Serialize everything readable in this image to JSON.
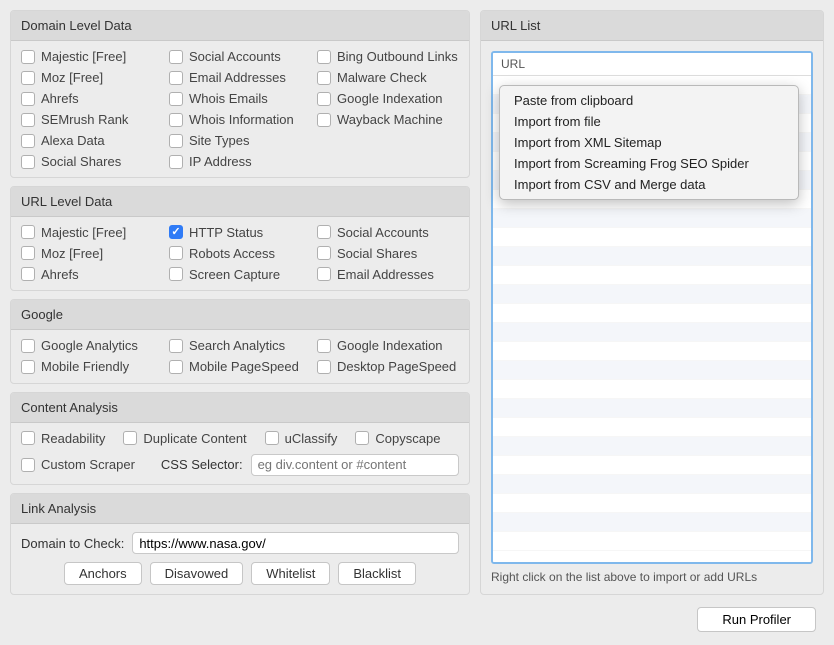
{
  "domainLevel": {
    "title": "Domain Level Data",
    "items": [
      {
        "label": "Majestic [Free]",
        "checked": false
      },
      {
        "label": "Social Accounts",
        "checked": false
      },
      {
        "label": "Bing Outbound Links",
        "checked": false
      },
      {
        "label": "Moz [Free]",
        "checked": false
      },
      {
        "label": "Email Addresses",
        "checked": false
      },
      {
        "label": "Malware Check",
        "checked": false
      },
      {
        "label": "Ahrefs",
        "checked": false
      },
      {
        "label": "Whois Emails",
        "checked": false
      },
      {
        "label": "Google Indexation",
        "checked": false
      },
      {
        "label": "SEMrush Rank",
        "checked": false
      },
      {
        "label": "Whois Information",
        "checked": false
      },
      {
        "label": "Wayback Machine",
        "checked": false
      },
      {
        "label": "Alexa Data",
        "checked": false
      },
      {
        "label": "Site Types",
        "checked": false
      },
      {
        "label": "",
        "checked": false,
        "empty": true
      },
      {
        "label": "Social Shares",
        "checked": false
      },
      {
        "label": "IP Address",
        "checked": false
      }
    ]
  },
  "urlLevel": {
    "title": "URL Level Data",
    "items": [
      {
        "label": "Majestic [Free]",
        "checked": false
      },
      {
        "label": "HTTP Status",
        "checked": true
      },
      {
        "label": "Social Accounts",
        "checked": false
      },
      {
        "label": "Moz [Free]",
        "checked": false
      },
      {
        "label": "Robots Access",
        "checked": false
      },
      {
        "label": "Social Shares",
        "checked": false
      },
      {
        "label": "Ahrefs",
        "checked": false
      },
      {
        "label": "Screen Capture",
        "checked": false
      },
      {
        "label": "Email Addresses",
        "checked": false
      }
    ]
  },
  "google": {
    "title": "Google",
    "items": [
      {
        "label": "Google Analytics",
        "checked": false
      },
      {
        "label": "Search Analytics",
        "checked": false
      },
      {
        "label": "Google Indexation",
        "checked": false
      },
      {
        "label": "Mobile Friendly",
        "checked": false
      },
      {
        "label": "Mobile PageSpeed",
        "checked": false
      },
      {
        "label": "Desktop PageSpeed",
        "checked": false
      }
    ]
  },
  "content": {
    "title": "Content Analysis",
    "row1": [
      {
        "label": "Readability",
        "checked": false
      },
      {
        "label": "Duplicate Content",
        "checked": false
      },
      {
        "label": "uClassify",
        "checked": false
      },
      {
        "label": "Copyscape",
        "checked": false
      }
    ],
    "row2": {
      "label": "Custom Scraper",
      "checked": false
    },
    "cssSelectorLabel": "CSS Selector:",
    "cssSelectorPlaceholder": "eg div.content or #content"
  },
  "link": {
    "title": "Link Analysis",
    "domainLabel": "Domain to Check:",
    "domainValue": "https://www.nasa.gov/",
    "buttons": [
      "Anchors",
      "Disavowed",
      "Whitelist",
      "Blacklist"
    ]
  },
  "urlList": {
    "title": "URL List",
    "columnHeader": "URL",
    "hint": "Right click on the list above to import or add URLs",
    "contextMenu": [
      "Paste from clipboard",
      "Import from file",
      "Import from XML Sitemap",
      "Import from Screaming Frog SEO Spider",
      "Import from CSV and Merge data"
    ]
  },
  "runButton": "Run Profiler"
}
